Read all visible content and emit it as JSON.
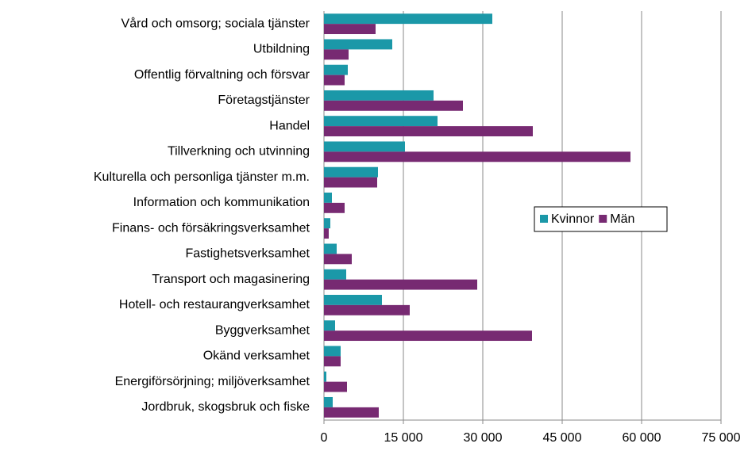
{
  "chart_data": {
    "type": "barh",
    "categories": [
      "Vård och omsorg; sociala tjänster",
      "Utbildning",
      "Offentlig förvaltning och försvar",
      "Företagstjänster",
      "Handel",
      "Tillverkning och utvinning",
      "Kulturella och personliga tjänster m.m.",
      "Information och kommunikation",
      "Finans- och försäkringsverksamhet",
      "Fastighetsverksamhet",
      "Transport och magasinering",
      "Hotell- och restaurangverksamhet",
      "Byggverksamhet",
      "Okänd verksamhet",
      "Energiförsörjning; miljöverksamhet",
      "Jordbruk, skogsbruk och fiske"
    ],
    "series": [
      {
        "name": "Kvinnor",
        "color": "#1b98a8",
        "values": [
          31800,
          12900,
          4500,
          20700,
          21450,
          15300,
          10200,
          1500,
          1200,
          2400,
          4200,
          10950,
          2100,
          3150,
          450,
          1650
        ]
      },
      {
        "name": "Män",
        "color": "#772a72",
        "values": [
          9750,
          4650,
          3900,
          26250,
          39450,
          57900,
          10050,
          3900,
          900,
          5250,
          28950,
          16200,
          39300,
          3150,
          4350,
          10350
        ]
      }
    ],
    "xlim": [
      0,
      75000
    ],
    "xticks": [
      0,
      {
        "value": 15000,
        "label": "15 000"
      },
      {
        "value": 30000,
        "label": "30 000"
      },
      {
        "value": 45000,
        "label": "45 000"
      },
      {
        "value": 60000,
        "label": "60 000"
      },
      {
        "value": 75000,
        "label": "75 000"
      }
    ],
    "grid": true,
    "legend": "right"
  }
}
